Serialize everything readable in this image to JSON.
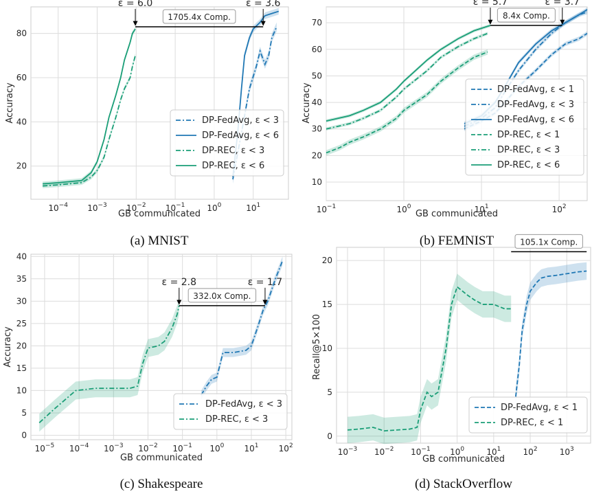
{
  "colors": {
    "fedavg": "#1f77b4",
    "rec": "#1a9e77",
    "grid": "#dcdcdc"
  },
  "chart_data": [
    {
      "type": "line",
      "caption": "(a) MNIST",
      "xlabel": "GB communicated",
      "ylabel": "Accuracy",
      "xscale": "log",
      "xlim": [
        2e-05,
        80
      ],
      "ylim": [
        5,
        92
      ],
      "xticks": [
        0.0001,
        0.001,
        0.01,
        0.1,
        1,
        10
      ],
      "xtick_labels": [
        "10^-4",
        "10^-3",
        "10^-2",
        "10^-1",
        "10^0",
        "10^1"
      ],
      "yticks": [
        20,
        40,
        60,
        80
      ],
      "ytick_labels": [
        "20",
        "40",
        "60",
        "80"
      ],
      "grid": true,
      "legend_position": "bottom-right",
      "series": [
        {
          "name": "DP-FedAvg, ε < 3",
          "color": "#1f77b4",
          "dash": "dashdot",
          "band": 2,
          "points": [
            [
              3,
              14
            ],
            [
              5,
              35
            ],
            [
              8,
              55
            ],
            [
              12,
              65
            ],
            [
              15,
              72
            ],
            [
              20,
              66
            ],
            [
              25,
              70
            ],
            [
              30,
              78
            ],
            [
              40,
              83
            ]
          ]
        },
        {
          "name": "DP-FedAvg, ε < 6",
          "color": "#1f77b4",
          "dash": "solid",
          "band": 1.5,
          "points": [
            [
              3,
              15
            ],
            [
              4,
              35
            ],
            [
              5,
              55
            ],
            [
              6,
              70
            ],
            [
              8,
              78
            ],
            [
              10,
              82
            ],
            [
              15,
              85
            ],
            [
              20,
              88
            ],
            [
              30,
              89
            ],
            [
              45,
              90
            ]
          ]
        },
        {
          "name": "DP-REC, ε < 3",
          "color": "#1a9e77",
          "dash": "dashdot",
          "band": 1,
          "points": [
            [
              4e-05,
              11
            ],
            [
              0.0001,
              11.5
            ],
            [
              0.0002,
              12
            ],
            [
              0.0004,
              12.5
            ],
            [
              0.0007,
              15
            ],
            [
              0.001,
              18
            ],
            [
              0.0015,
              24
            ],
            [
              0.002,
              32
            ],
            [
              0.003,
              42
            ],
            [
              0.004,
              50
            ],
            [
              0.005,
              55
            ],
            [
              0.007,
              60
            ],
            [
              0.008,
              65
            ],
            [
              0.0095,
              70
            ]
          ]
        },
        {
          "name": "DP-REC, ε < 6",
          "color": "#1a9e77",
          "dash": "solid",
          "band": 1,
          "points": [
            [
              4e-05,
              12
            ],
            [
              0.0001,
              12.5
            ],
            [
              0.0002,
              13
            ],
            [
              0.0004,
              13.5
            ],
            [
              0.0007,
              17
            ],
            [
              0.001,
              22
            ],
            [
              0.0015,
              32
            ],
            [
              0.002,
              42
            ],
            [
              0.003,
              52
            ],
            [
              0.004,
              60
            ],
            [
              0.005,
              68
            ],
            [
              0.007,
              76
            ],
            [
              0.008,
              80
            ],
            [
              0.0095,
              82
            ]
          ]
        }
      ],
      "annotations": [
        {
          "text": "ε = 6.0",
          "x": 0.0095,
          "y": 83
        },
        {
          "text": "ε = 3.6",
          "x": 18,
          "y": 83
        }
      ],
      "comparison": {
        "text": "1705.4x Comp.",
        "x1": 0.0095,
        "x2": 18,
        "y": 83
      }
    },
    {
      "type": "line",
      "caption": "(b) FEMNIST",
      "xlabel": "GB communicated",
      "ylabel": "Accuracy",
      "xscale": "log",
      "xlim": [
        0.1,
        230
      ],
      "ylim": [
        3,
        76
      ],
      "xticks": [
        0.1,
        1,
        10,
        100
      ],
      "xtick_labels": [
        "10^-1",
        "10^0",
        "10^1",
        "10^2"
      ],
      "yticks": [
        10,
        20,
        30,
        40,
        50,
        60,
        70
      ],
      "ytick_labels": [
        "10",
        "20",
        "30",
        "40",
        "50",
        "60",
        "70"
      ],
      "grid": true,
      "legend_position": "bottom-right",
      "series": [
        {
          "name": "DP-FedAvg, ε < 1",
          "color": "#1f77b4",
          "dash": "dashed",
          "band": 0.8,
          "points": [
            [
              6,
              30
            ],
            [
              10,
              33
            ],
            [
              15,
              36
            ],
            [
              20,
              40
            ],
            [
              30,
              46
            ],
            [
              50,
              52
            ],
            [
              80,
              58
            ],
            [
              120,
              62
            ],
            [
              180,
              64
            ],
            [
              230,
              66
            ]
          ]
        },
        {
          "name": "DP-FedAvg, ε < 3",
          "color": "#1f77b4",
          "dash": "dashdot",
          "band": 0.8,
          "points": [
            [
              6,
              31
            ],
            [
              10,
              34
            ],
            [
              15,
              38
            ],
            [
              20,
              44
            ],
            [
              30,
              52
            ],
            [
              50,
              60
            ],
            [
              80,
              66
            ],
            [
              120,
              70
            ],
            [
              180,
              73
            ],
            [
              230,
              74
            ]
          ]
        },
        {
          "name": "DP-FedAvg, ε < 6",
          "color": "#1f77b4",
          "dash": "solid",
          "band": 0.8,
          "points": [
            [
              6,
              32
            ],
            [
              10,
              35
            ],
            [
              15,
              40
            ],
            [
              20,
              46
            ],
            [
              30,
              55
            ],
            [
              50,
              62
            ],
            [
              80,
              67
            ],
            [
              120,
              70
            ],
            [
              180,
              73
            ],
            [
              230,
              75
            ]
          ]
        },
        {
          "name": "DP-REC, ε < 1",
          "color": "#1a9e77",
          "dash": "dashed",
          "band": 1,
          "points": [
            [
              0.1,
              21
            ],
            [
              0.15,
              23
            ],
            [
              0.2,
              25
            ],
            [
              0.3,
              27
            ],
            [
              0.5,
              30
            ],
            [
              0.8,
              34
            ],
            [
              1,
              37
            ],
            [
              2,
              43
            ],
            [
              3,
              48
            ],
            [
              5,
              53
            ],
            [
              8,
              57
            ],
            [
              12,
              59
            ]
          ]
        },
        {
          "name": "DP-REC, ε < 3",
          "color": "#1a9e77",
          "dash": "dashdot",
          "band": 0.6,
          "points": [
            [
              0.1,
              30
            ],
            [
              0.2,
              32
            ],
            [
              0.3,
              34
            ],
            [
              0.5,
              37
            ],
            [
              0.8,
              42
            ],
            [
              1,
              45
            ],
            [
              2,
              52
            ],
            [
              3,
              57
            ],
            [
              5,
              61
            ],
            [
              8,
              64
            ],
            [
              12,
              66
            ]
          ]
        },
        {
          "name": "DP-REC, ε < 6",
          "color": "#1a9e77",
          "dash": "solid",
          "band": 0.6,
          "points": [
            [
              0.1,
              33
            ],
            [
              0.2,
              35
            ],
            [
              0.3,
              37
            ],
            [
              0.5,
              40
            ],
            [
              0.8,
              45
            ],
            [
              1,
              48
            ],
            [
              2,
              56
            ],
            [
              3,
              60
            ],
            [
              5,
              64
            ],
            [
              8,
              67
            ],
            [
              13,
              69
            ]
          ]
        }
      ],
      "annotations": [
        {
          "text": "ε = 5.7",
          "x": 13,
          "y": 69
        },
        {
          "text": "ε = 3.7",
          "x": 110,
          "y": 69
        }
      ],
      "comparison": {
        "text": "8.4x Comp.",
        "x1": 13,
        "x2": 110,
        "y": 69
      }
    },
    {
      "type": "line",
      "caption": "(c) Shakespeare",
      "xlabel": "GB communicated",
      "ylabel": "Accuracy",
      "xscale": "log",
      "xlim": [
        4e-06,
        150
      ],
      "ylim": [
        -1,
        40.5
      ],
      "xticks": [
        1e-05,
        0.0001,
        0.001,
        0.01,
        0.1,
        1,
        10,
        100
      ],
      "xtick_labels": [
        "10^-5",
        "10^-4",
        "10^-3",
        "10^-2",
        "10^-1",
        "10^0",
        "10^1",
        "10^2"
      ],
      "yticks": [
        0,
        5,
        10,
        15,
        20,
        25,
        30,
        35,
        40
      ],
      "ytick_labels": [
        "0",
        "5",
        "10",
        "15",
        "20",
        "25",
        "30",
        "35",
        "40"
      ],
      "grid": true,
      "legend_position": "bottom-right",
      "series": [
        {
          "name": "DP-FedAvg, ε < 3",
          "color": "#1f77b4",
          "dash": "dashdot",
          "band": 1,
          "points": [
            [
              0.35,
              9
            ],
            [
              0.5,
              11
            ],
            [
              0.7,
              12.5
            ],
            [
              1,
              13
            ],
            [
              1.5,
              18.5
            ],
            [
              3,
              18.5
            ],
            [
              7,
              19
            ],
            [
              10,
              20
            ],
            [
              15,
              24
            ],
            [
              22,
              28
            ],
            [
              30,
              30
            ],
            [
              50,
              35
            ],
            [
              80,
              39
            ]
          ]
        },
        {
          "name": "DP-REC, ε < 3",
          "color": "#1a9e77",
          "dash": "dashdot",
          "band": 2,
          "points": [
            [
              7e-06,
              2.8
            ],
            [
              2e-05,
              6
            ],
            [
              8e-05,
              10
            ],
            [
              0.0003,
              10.5
            ],
            [
              0.003,
              10.5
            ],
            [
              0.005,
              11
            ],
            [
              0.007,
              16
            ],
            [
              0.01,
              19.5
            ],
            [
              0.02,
              20
            ],
            [
              0.03,
              21
            ],
            [
              0.05,
              24
            ],
            [
              0.07,
              27
            ],
            [
              0.08,
              29
            ]
          ]
        }
      ],
      "annotations": [
        {
          "text": "ε = 2.8",
          "x": 0.08,
          "y": 29
        },
        {
          "text": "ε = 1.7",
          "x": 25,
          "y": 29
        }
      ],
      "comparison": {
        "text": "332.0x Comp.",
        "x1": 0.08,
        "x2": 25,
        "y": 29
      }
    },
    {
      "type": "line",
      "caption": "(d) StackOverflow",
      "xlabel": "GB communicated",
      "ylabel": "Recall@5×100",
      "xscale": "log",
      "xlim": [
        0.0005,
        4500
      ],
      "ylim": [
        -0.8,
        21.5
      ],
      "xticks": [
        0.001,
        0.01,
        0.1,
        1,
        10,
        100,
        1000
      ],
      "xtick_labels": [
        "10^-3",
        "10^-2",
        "10^-1",
        "10^0",
        "10^1",
        "10^2",
        "10^3"
      ],
      "yticks": [
        0,
        5,
        10,
        15,
        20
      ],
      "ytick_labels": [
        "0",
        "5",
        "10",
        "15",
        "20"
      ],
      "grid": true,
      "legend_position": "bottom-right",
      "series": [
        {
          "name": "DP-FedAvg, ε < 1",
          "color": "#1f77b4",
          "dash": "dashed",
          "band": 1,
          "points": [
            [
              40,
              4.5
            ],
            [
              50,
              8
            ],
            [
              60,
              12
            ],
            [
              80,
              15
            ],
            [
              100,
              16.5
            ],
            [
              150,
              17.5
            ],
            [
              200,
              18
            ],
            [
              300,
              18.2
            ],
            [
              500,
              18.3
            ],
            [
              1000,
              18.5
            ],
            [
              2000,
              18.7
            ],
            [
              3500,
              18.8
            ]
          ]
        },
        {
          "name": "DP-REC, ε < 1",
          "color": "#1a9e77",
          "dash": "dashed",
          "band": 1.5,
          "points": [
            [
              0.001,
              0.7
            ],
            [
              0.002,
              0.8
            ],
            [
              0.005,
              1
            ],
            [
              0.01,
              0.6
            ],
            [
              0.05,
              0.8
            ],
            [
              0.08,
              1
            ],
            [
              0.1,
              3
            ],
            [
              0.15,
              5
            ],
            [
              0.2,
              4.5
            ],
            [
              0.3,
              5
            ],
            [
              0.5,
              10
            ],
            [
              0.7,
              15
            ],
            [
              1,
              17
            ],
            [
              2,
              16
            ],
            [
              3,
              15.5
            ],
            [
              5,
              15
            ],
            [
              10,
              15
            ],
            [
              20,
              14.5
            ],
            [
              30,
              14.5
            ]
          ]
        }
      ],
      "comparison": {
        "text": "105.1x Comp.",
        "x1": 30,
        "x2": 3500,
        "y": 21
      }
    }
  ]
}
